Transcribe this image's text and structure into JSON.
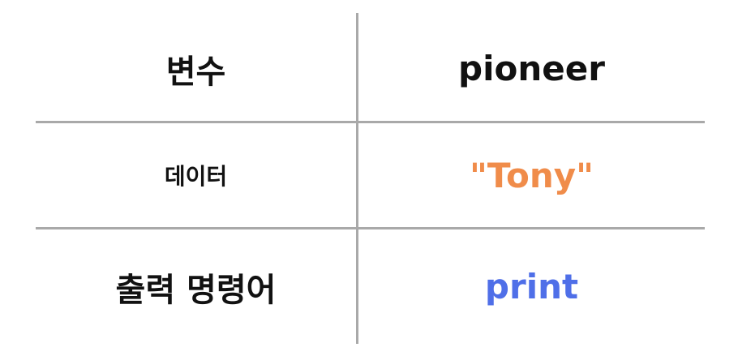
{
  "rows": [
    {
      "label": "변수",
      "value": "pioneer",
      "value_color": "#111111"
    },
    {
      "label": "데이터",
      "value": "\"Tony\"",
      "value_color": "#f08c4a"
    },
    {
      "label": "출력 명령어",
      "value": "print",
      "value_color": "#4f6fe8"
    }
  ],
  "colors": {
    "divider": "#a9a9a9",
    "text": "#111111"
  }
}
